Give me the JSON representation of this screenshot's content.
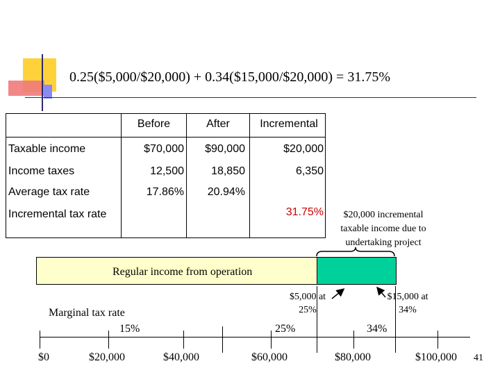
{
  "title": "0.25($5,000/$20,000) + 0.34($15,000/$20,000) = 31.75%",
  "table": {
    "headers": [
      "Before",
      "After",
      "Incremental"
    ],
    "rows": [
      {
        "label": "Taxable income",
        "before": "$70,000",
        "after": "$90,000",
        "incremental": "$20,000"
      },
      {
        "label": "Income taxes",
        "before": "12,500",
        "after": "18,850",
        "incremental": "6,350"
      },
      {
        "label": "Average tax rate",
        "before": "17.86%",
        "after": "20.94%",
        "incremental": ""
      },
      {
        "label": "Incremental tax rate",
        "before": "",
        "after": "",
        "incremental": "31.75%"
      }
    ]
  },
  "note_incremental": "$20,000 incremental taxable income due to undertaking project",
  "bar": {
    "regular_label": "Regular income from operation",
    "colors": {
      "regular": "#ffffcc",
      "incremental": "#00d19a"
    }
  },
  "annotations": {
    "bracket_25": "$5,000 at 25%",
    "bracket_34": "$15,000 at 34%",
    "marginal_label": "Marginal tax rate",
    "rate_15": "15%",
    "rate_25": "25%",
    "rate_34": "34%"
  },
  "axis_labels": [
    "$0",
    "$20,000",
    "$40,000",
    "$60,000",
    "$80,000",
    "$100,000"
  ],
  "slide_number": "41"
}
